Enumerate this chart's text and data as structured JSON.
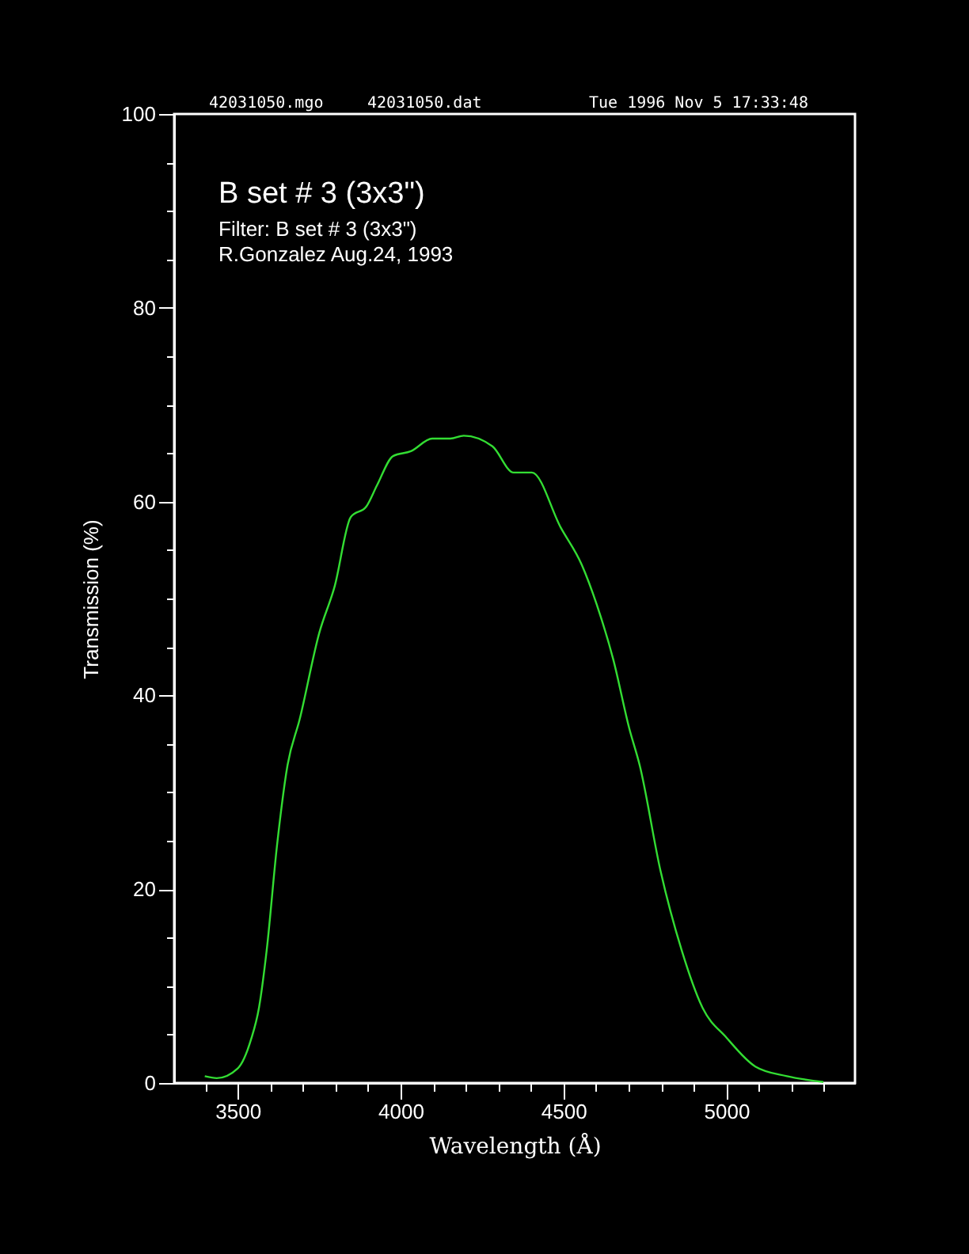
{
  "chart_data": {
    "type": "line",
    "title": "B set # 3 (3x3\")",
    "subtitle": "Filter: B set # 3 (3x3\")",
    "annotations": [
      "R.Gonzalez Aug.24, 1993",
      "42031050.mgo",
      "42031050.dat",
      "Tue 1996 Nov  5 17:33:48"
    ],
    "xlabel": "Wavelength (Å)",
    "ylabel": "Transmission (%)",
    "xlim": [
      3305,
      5395
    ],
    "ylim": [
      0,
      100
    ],
    "xticks": [
      {
        "value": 3400,
        "label": null
      },
      3500,
      {
        "value": 3600,
        "label": null
      },
      {
        "value": 3700,
        "label": null
      },
      {
        "value": 3800,
        "label": null
      },
      {
        "value": 3900,
        "label": null
      },
      4000,
      {
        "value": 4100,
        "label": null
      },
      {
        "value": 4200,
        "label": null
      },
      {
        "value": 4300,
        "label": null
      },
      {
        "value": 4400,
        "label": null
      },
      4500,
      {
        "value": 4600,
        "label": null
      },
      {
        "value": 4700,
        "label": null
      },
      {
        "value": 4800,
        "label": null
      },
      {
        "value": 4900,
        "label": null
      },
      5000,
      {
        "value": 5100,
        "label": null
      },
      {
        "value": 5200,
        "label": null
      },
      {
        "value": 5300,
        "label": null
      }
    ],
    "yticks": [
      0,
      {
        "value": 5,
        "label": null
      },
      {
        "value": 10,
        "label": null
      },
      {
        "value": 15,
        "label": null
      },
      20,
      {
        "value": 25,
        "label": null
      },
      {
        "value": 30,
        "label": null
      },
      {
        "value": 35,
        "label": null
      },
      40,
      {
        "value": 45,
        "label": null
      },
      {
        "value": 50,
        "label": null
      },
      {
        "value": 55,
        "label": null
      },
      60,
      {
        "value": 65,
        "label": null
      },
      {
        "value": 70,
        "label": null
      },
      {
        "value": 75,
        "label": null
      },
      80,
      {
        "value": 85,
        "label": null
      },
      {
        "value": 90,
        "label": null
      },
      {
        "value": 95,
        "label": null
      },
      100
    ],
    "grid": false,
    "legend": false,
    "marker": "none",
    "line_style": "solid",
    "series": [
      {
        "color": "#33dd33",
        "x": [
          3399,
          3436,
          3500,
          3541,
          3565,
          3589,
          3621,
          3653,
          3690,
          3750,
          3798,
          3847,
          3895,
          3928,
          3977,
          4032,
          4097,
          4153,
          4194,
          4282,
          4347,
          4403,
          4492,
          4556,
          4605,
          4653,
          4702,
          4734,
          4798,
          4863,
          4928,
          5000,
          5089,
          5186,
          5298
        ],
        "values": [
          0.7,
          0.5,
          1.5,
          4.5,
          7.7,
          13.7,
          24.6,
          32.8,
          37.5,
          46.4,
          51.3,
          58.4,
          59.5,
          61.7,
          64.7,
          65.2,
          66.5,
          66.5,
          66.8,
          65.7,
          63.0,
          63.0,
          57.3,
          53.5,
          49.1,
          43.7,
          36.6,
          32.8,
          21.9,
          13.7,
          7.7,
          4.7,
          1.7,
          0.7,
          0.1
        ]
      }
    ]
  }
}
